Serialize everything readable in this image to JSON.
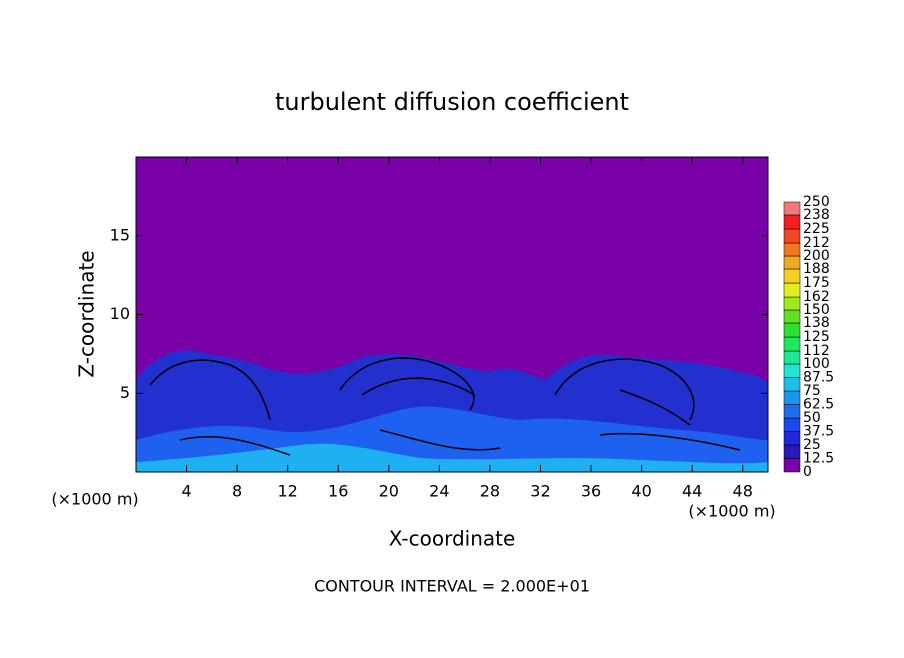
{
  "chart_data": {
    "type": "contour",
    "title": "turbulent diffusion coefficient",
    "xlabel": "X-coordinate",
    "ylabel": "Z-coordinate",
    "x_unit_label": "(×1000 m)",
    "y_unit_label": "(×1000 m)",
    "footer": "CONTOUR INTERVAL = 2.000E+01",
    "xlim": [
      0,
      50
    ],
    "xticks": [
      4,
      8,
      12,
      16,
      20,
      24,
      28,
      32,
      36,
      40,
      44,
      48
    ],
    "ylim": [
      0,
      20
    ],
    "yticks": [
      5,
      10,
      15
    ],
    "colorbar": {
      "levels": [
        0,
        12.5,
        25,
        37.5,
        50,
        62.5,
        75,
        87.5,
        100,
        112,
        125,
        138,
        150,
        162,
        175,
        188,
        200,
        212,
        225,
        238,
        250
      ],
      "colors": [
        "#7a00a8",
        "#2a18b8",
        "#1e28d8",
        "#1e48ec",
        "#1e6cf0",
        "#1e96f0",
        "#1ec0ea",
        "#1ee6d0",
        "#1ee898",
        "#1ee860",
        "#30e030",
        "#60e020",
        "#a0e820",
        "#e0f020",
        "#f0d020",
        "#f0a820",
        "#f07820",
        "#f04820",
        "#f02020",
        "#f07878"
      ]
    }
  }
}
